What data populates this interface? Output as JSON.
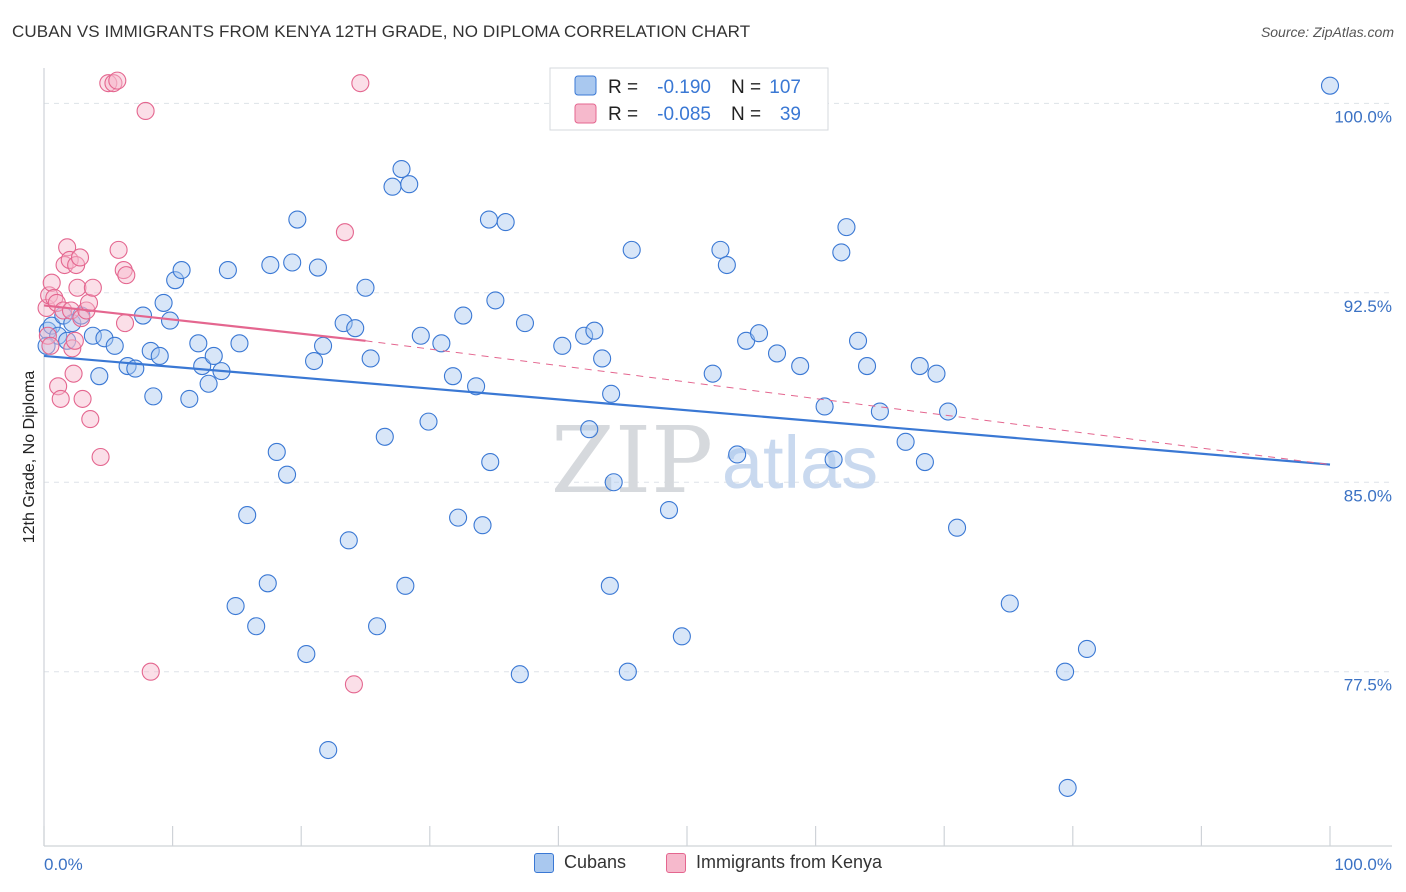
{
  "title": "CUBAN VS IMMIGRANTS FROM KENYA 12TH GRADE, NO DIPLOMA CORRELATION CHART",
  "source": "Source: ZipAtlas.com",
  "watermark": {
    "zip": "ZIP",
    "atlas": "atlas"
  },
  "colors": {
    "blue": "#3a78d4",
    "blue_fill": "#a9c8ef",
    "pink": "#e4668f",
    "pink_fill": "#f6b9cc",
    "axis_text": "#3b72c4",
    "grid": "#dde2e8"
  },
  "legend": {
    "rows": [
      {
        "r_label": "R =",
        "r_value": "-0.190",
        "n_label": "N =",
        "n_value": "107"
      },
      {
        "r_label": "R =",
        "r_value": "-0.085",
        "n_label": "N =",
        "n_value": "39"
      }
    ],
    "bottom": [
      "Cubans",
      "Immigrants from Kenya"
    ]
  },
  "chart_data": {
    "type": "scatter",
    "title": "CUBAN VS IMMIGRANTS FROM KENYA 12TH GRADE, NO DIPLOMA CORRELATION CHART",
    "xlabel": "",
    "ylabel": "12th Grade, No Diploma",
    "xlim": [
      0,
      100
    ],
    "ylim": [
      70.6,
      101.4
    ],
    "x_tick_labels": [
      "0.0%",
      "100.0%"
    ],
    "y_ticks": [
      77.5,
      85.0,
      92.5,
      100.0
    ],
    "y_tick_labels": [
      "77.5%",
      "85.0%",
      "92.5%",
      "100.0%"
    ],
    "series": [
      {
        "name": "Cubans",
        "r": -0.19,
        "n": 107,
        "trend": {
          "x": [
            0,
            100
          ],
          "y": [
            90.0,
            85.7
          ],
          "style": "solid"
        },
        "points": [
          [
            0.3,
            91.0
          ],
          [
            0.6,
            91.2
          ],
          [
            1.1,
            90.8
          ],
          [
            1.5,
            91.6
          ],
          [
            1.8,
            90.6
          ],
          [
            2.2,
            91.3
          ],
          [
            2.9,
            91.6
          ],
          [
            3.8,
            90.8
          ],
          [
            4.3,
            89.2
          ],
          [
            4.7,
            90.7
          ],
          [
            5.5,
            90.4
          ],
          [
            6.5,
            89.6
          ],
          [
            7.1,
            89.5
          ],
          [
            7.7,
            91.6
          ],
          [
            8.3,
            90.2
          ],
          [
            8.5,
            88.4
          ],
          [
            9.0,
            90.0
          ],
          [
            9.3,
            92.1
          ],
          [
            9.8,
            91.4
          ],
          [
            10.2,
            93.0
          ],
          [
            10.7,
            93.4
          ],
          [
            11.3,
            88.3
          ],
          [
            12.0,
            90.5
          ],
          [
            12.3,
            89.6
          ],
          [
            12.8,
            88.9
          ],
          [
            13.2,
            90.0
          ],
          [
            13.8,
            89.4
          ],
          [
            14.3,
            93.4
          ],
          [
            15.2,
            90.5
          ],
          [
            15.8,
            83.7
          ],
          [
            14.9,
            80.1
          ],
          [
            16.5,
            79.3
          ],
          [
            17.4,
            81.0
          ],
          [
            17.6,
            93.6
          ],
          [
            18.1,
            86.2
          ],
          [
            18.9,
            85.3
          ],
          [
            19.3,
            93.7
          ],
          [
            19.7,
            95.4
          ],
          [
            20.4,
            78.2
          ],
          [
            21.0,
            89.8
          ],
          [
            21.3,
            93.5
          ],
          [
            21.7,
            90.4
          ],
          [
            22.1,
            74.4
          ],
          [
            23.3,
            91.3
          ],
          [
            23.7,
            82.7
          ],
          [
            24.2,
            91.1
          ],
          [
            25.0,
            92.7
          ],
          [
            25.4,
            89.9
          ],
          [
            25.9,
            79.3
          ],
          [
            26.5,
            86.8
          ],
          [
            27.1,
            96.7
          ],
          [
            27.8,
            97.4
          ],
          [
            28.1,
            80.9
          ],
          [
            28.4,
            96.8
          ],
          [
            29.3,
            90.8
          ],
          [
            29.9,
            87.4
          ],
          [
            30.9,
            90.5
          ],
          [
            31.8,
            89.2
          ],
          [
            32.2,
            83.6
          ],
          [
            32.6,
            91.6
          ],
          [
            33.6,
            88.8
          ],
          [
            34.1,
            83.3
          ],
          [
            34.6,
            95.4
          ],
          [
            34.7,
            85.8
          ],
          [
            35.1,
            92.2
          ],
          [
            35.9,
            95.3
          ],
          [
            37.0,
            77.4
          ],
          [
            37.4,
            91.3
          ],
          [
            40.3,
            90.4
          ],
          [
            42.0,
            90.8
          ],
          [
            42.4,
            87.1
          ],
          [
            42.8,
            91.0
          ],
          [
            43.4,
            89.9
          ],
          [
            44.3,
            85.0
          ],
          [
            44.1,
            88.5
          ],
          [
            44.0,
            80.9
          ],
          [
            45.4,
            77.5
          ],
          [
            45.7,
            94.2
          ],
          [
            48.6,
            83.9
          ],
          [
            49.6,
            78.9
          ],
          [
            52.0,
            89.3
          ],
          [
            52.6,
            94.2
          ],
          [
            53.1,
            93.6
          ],
          [
            53.9,
            86.1
          ],
          [
            54.6,
            90.6
          ],
          [
            55.6,
            90.9
          ],
          [
            57.0,
            90.1
          ],
          [
            58.8,
            89.6
          ],
          [
            60.7,
            88.0
          ],
          [
            61.4,
            85.9
          ],
          [
            62.0,
            94.1
          ],
          [
            62.4,
            95.1
          ],
          [
            63.3,
            90.6
          ],
          [
            64.0,
            89.6
          ],
          [
            65.0,
            87.8
          ],
          [
            67.0,
            86.6
          ],
          [
            68.1,
            89.6
          ],
          [
            68.5,
            85.8
          ],
          [
            69.4,
            89.3
          ],
          [
            70.3,
            87.8
          ],
          [
            71.0,
            83.2
          ],
          [
            75.1,
            80.2
          ],
          [
            79.4,
            77.5
          ],
          [
            81.1,
            78.4
          ],
          [
            79.6,
            72.9
          ],
          [
            100.0,
            100.7
          ],
          [
            0.2,
            90.4
          ]
        ]
      },
      {
        "name": "Immigrants from Kenya",
        "r": -0.085,
        "n": 39,
        "trend": {
          "x": [
            0,
            25
          ],
          "y": [
            92.0,
            90.6
          ],
          "style": "solid",
          "extended": {
            "x": [
              25,
              100
            ],
            "y": [
              90.6,
              85.7
            ],
            "style": "dashed"
          }
        },
        "points": [
          [
            0.2,
            91.9
          ],
          [
            0.4,
            92.4
          ],
          [
            0.6,
            92.9
          ],
          [
            0.8,
            92.3
          ],
          [
            1.0,
            92.1
          ],
          [
            0.3,
            90.8
          ],
          [
            0.5,
            90.4
          ],
          [
            1.1,
            88.8
          ],
          [
            1.3,
            88.3
          ],
          [
            1.5,
            91.8
          ],
          [
            1.6,
            93.6
          ],
          [
            1.8,
            94.3
          ],
          [
            2.0,
            93.8
          ],
          [
            2.1,
            91.8
          ],
          [
            2.2,
            90.3
          ],
          [
            2.3,
            89.3
          ],
          [
            2.5,
            93.6
          ],
          [
            2.6,
            92.7
          ],
          [
            2.8,
            93.9
          ],
          [
            2.9,
            91.5
          ],
          [
            3.0,
            88.3
          ],
          [
            3.3,
            91.8
          ],
          [
            3.5,
            92.1
          ],
          [
            3.6,
            87.5
          ],
          [
            3.8,
            92.7
          ],
          [
            4.4,
            86.0
          ],
          [
            5.0,
            100.8
          ],
          [
            5.4,
            100.8
          ],
          [
            5.7,
            100.9
          ],
          [
            5.8,
            94.2
          ],
          [
            6.2,
            93.4
          ],
          [
            6.3,
            91.3
          ],
          [
            6.4,
            93.2
          ],
          [
            7.9,
            99.7
          ],
          [
            8.3,
            77.5
          ],
          [
            23.4,
            94.9
          ],
          [
            24.6,
            100.8
          ],
          [
            24.1,
            77.0
          ],
          [
            2.4,
            90.6
          ]
        ]
      }
    ]
  }
}
